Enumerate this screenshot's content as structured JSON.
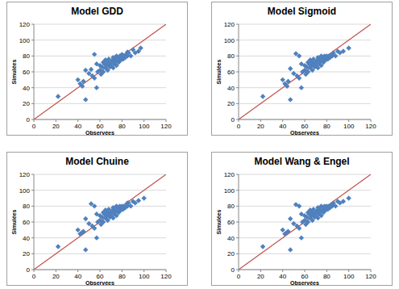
{
  "chart_data": [
    {
      "type": "scatter",
      "title": "Model GDD",
      "x_label": "Observées",
      "y_label": "Simulées",
      "x": [
        22,
        40,
        42,
        44,
        45,
        47,
        47,
        50,
        52,
        53,
        55,
        55,
        57,
        57,
        58,
        60,
        60,
        61,
        62,
        63,
        63,
        64,
        65,
        65,
        66,
        67,
        67,
        68,
        68,
        69,
        70,
        70,
        71,
        72,
        72,
        73,
        73,
        74,
        75,
        75,
        76,
        76,
        77,
        78,
        78,
        79,
        80,
        80,
        81,
        82,
        83,
        84,
        85,
        85,
        86,
        88,
        90,
        92,
        95,
        97
      ],
      "values": [
        29,
        50,
        45,
        42,
        48,
        25,
        62,
        58,
        63,
        55,
        82,
        52,
        40,
        70,
        60,
        62,
        68,
        57,
        66,
        72,
        60,
        70,
        65,
        75,
        68,
        62,
        72,
        70,
        76,
        66,
        72,
        68,
        74,
        65,
        78,
        70,
        76,
        73,
        68,
        80,
        74,
        78,
        72,
        76,
        80,
        75,
        78,
        82,
        76,
        80,
        78,
        82,
        85,
        80,
        84,
        80,
        88,
        84,
        86,
        90
      ],
      "xlim": [
        0,
        120
      ],
      "ylim": [
        0,
        120
      ],
      "xticks": [
        0,
        20,
        40,
        60,
        80,
        100,
        120
      ],
      "yticks": [
        0,
        20,
        40,
        60,
        80,
        100,
        120
      ],
      "grid": true,
      "color": "#4f81bd",
      "marker": "diamond"
    },
    {
      "type": "scatter",
      "title": "Model Sigmoid",
      "x_label": "Observées",
      "y_label": "Simulées",
      "x": [
        22,
        40,
        42,
        44,
        45,
        47,
        47,
        50,
        52,
        53,
        55,
        55,
        57,
        57,
        58,
        60,
        60,
        61,
        62,
        63,
        63,
        64,
        65,
        65,
        66,
        67,
        67,
        68,
        68,
        69,
        70,
        70,
        71,
        72,
        72,
        73,
        73,
        74,
        75,
        75,
        76,
        76,
        77,
        78,
        78,
        79,
        80,
        80,
        81,
        82,
        83,
        84,
        85,
        85,
        86,
        88,
        90,
        92,
        95,
        100
      ],
      "values": [
        29,
        50,
        45,
        42,
        48,
        25,
        64,
        58,
        83,
        55,
        80,
        52,
        40,
        70,
        60,
        62,
        68,
        57,
        66,
        72,
        60,
        70,
        65,
        75,
        68,
        62,
        72,
        70,
        76,
        66,
        72,
        68,
        74,
        65,
        78,
        70,
        76,
        73,
        68,
        80,
        74,
        78,
        72,
        76,
        80,
        75,
        78,
        80,
        76,
        80,
        78,
        80,
        82,
        80,
        84,
        80,
        86,
        84,
        86,
        90
      ],
      "xlim": [
        0,
        120
      ],
      "ylim": [
        0,
        120
      ],
      "xticks": [
        0,
        20,
        40,
        60,
        80,
        100,
        120
      ],
      "yticks": [
        0,
        20,
        40,
        60,
        80,
        100,
        120
      ],
      "grid": true,
      "color": "#4f81bd",
      "marker": "diamond"
    },
    {
      "type": "scatter",
      "title": "Model Chuine",
      "x_label": "Observées",
      "y_label": "Simulées",
      "x": [
        22,
        40,
        42,
        44,
        45,
        47,
        47,
        50,
        52,
        53,
        55,
        55,
        57,
        57,
        58,
        60,
        60,
        61,
        62,
        63,
        63,
        64,
        65,
        65,
        66,
        67,
        67,
        68,
        68,
        69,
        70,
        70,
        71,
        72,
        72,
        73,
        73,
        74,
        75,
        75,
        76,
        76,
        77,
        78,
        78,
        79,
        80,
        80,
        81,
        82,
        83,
        84,
        85,
        85,
        86,
        88,
        90,
        92,
        95,
        100
      ],
      "values": [
        29,
        50,
        45,
        47,
        48,
        25,
        64,
        58,
        83,
        55,
        80,
        52,
        40,
        70,
        60,
        62,
        68,
        57,
        66,
        72,
        60,
        70,
        65,
        75,
        68,
        62,
        72,
        70,
        76,
        66,
        72,
        68,
        74,
        65,
        78,
        70,
        76,
        73,
        68,
        80,
        74,
        78,
        72,
        76,
        80,
        75,
        78,
        80,
        76,
        80,
        78,
        80,
        84,
        80,
        84,
        80,
        86,
        84,
        87,
        90
      ],
      "xlim": [
        0,
        120
      ],
      "ylim": [
        0,
        120
      ],
      "xticks": [
        0,
        20,
        40,
        60,
        80,
        100,
        120
      ],
      "yticks": [
        0,
        20,
        40,
        60,
        80,
        100,
        120
      ],
      "grid": true,
      "color": "#4f81bd",
      "marker": "diamond"
    },
    {
      "type": "scatter",
      "title": "Model Wang & Engel",
      "x_label": "Observées",
      "y_label": "Simulées",
      "x": [
        22,
        40,
        42,
        44,
        45,
        47,
        47,
        50,
        52,
        53,
        55,
        55,
        57,
        57,
        58,
        60,
        60,
        61,
        62,
        63,
        63,
        64,
        65,
        65,
        66,
        67,
        67,
        68,
        68,
        69,
        70,
        70,
        71,
        72,
        72,
        73,
        73,
        74,
        75,
        75,
        76,
        76,
        77,
        78,
        78,
        79,
        80,
        80,
        81,
        82,
        83,
        84,
        85,
        85,
        86,
        88,
        90,
        92,
        95,
        100
      ],
      "values": [
        29,
        50,
        45,
        47,
        48,
        25,
        64,
        58,
        82,
        55,
        80,
        52,
        40,
        70,
        60,
        62,
        68,
        57,
        66,
        72,
        60,
        70,
        65,
        75,
        68,
        62,
        72,
        70,
        76,
        66,
        72,
        68,
        74,
        65,
        78,
        70,
        76,
        73,
        68,
        80,
        74,
        78,
        72,
        76,
        80,
        75,
        78,
        80,
        76,
        80,
        78,
        80,
        82,
        80,
        84,
        80,
        86,
        84,
        86,
        90
      ],
      "xlim": [
        0,
        120
      ],
      "ylim": [
        0,
        120
      ],
      "xticks": [
        0,
        20,
        40,
        60,
        80,
        100,
        120
      ],
      "yticks": [
        0,
        20,
        40,
        60,
        80,
        100,
        120
      ],
      "grid": true,
      "color": "#4f81bd",
      "marker": "diamond"
    }
  ]
}
